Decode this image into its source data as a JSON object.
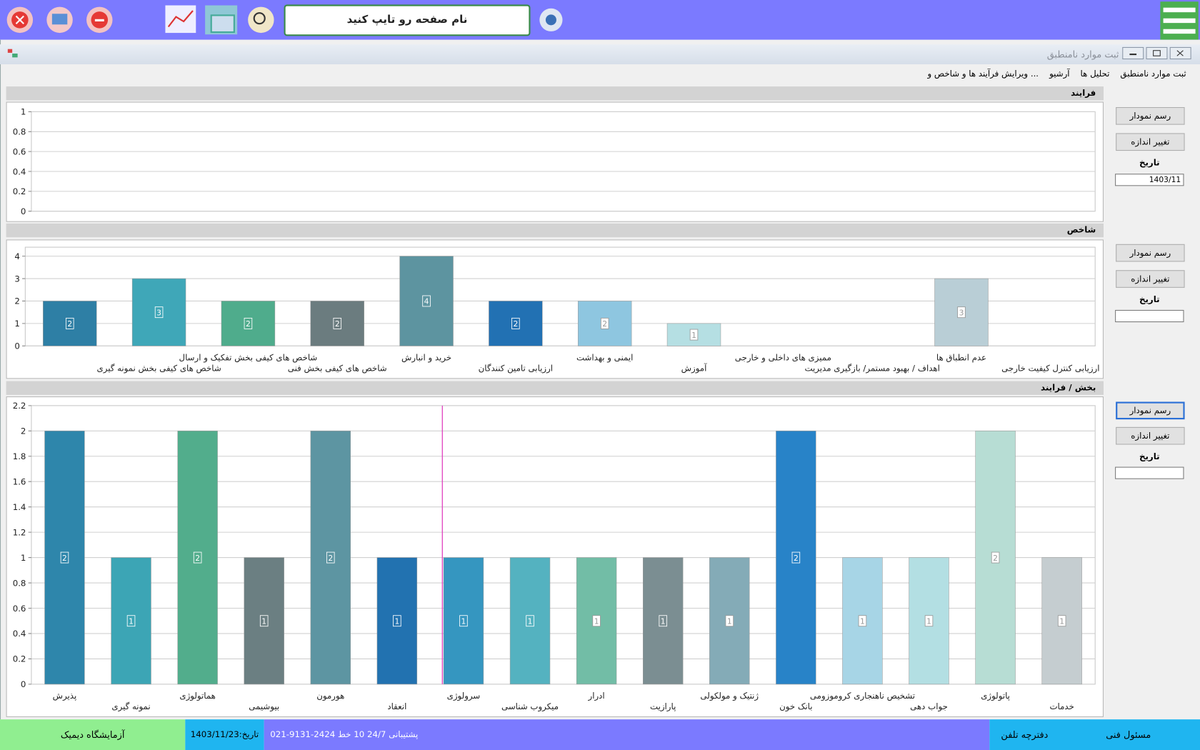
{
  "toolbar": {
    "search_placeholder": "نام صفحه رو تایپ کنید"
  },
  "window": {
    "title": "ثبت موارد نامنطبق"
  },
  "menu": [
    "ثبت موارد نامنطبق",
    "تحلیل ها",
    "آرشیو",
    "... ویرایش فرآیند ها و شاخص و"
  ],
  "side_panels": [
    {
      "draw": "رسم نمودار",
      "resize": "تغییر اندازه",
      "date": "تاریخ",
      "date_value": "1403/11"
    },
    {
      "draw": "رسم نمودار",
      "resize": "تغییر اندازه",
      "date": "تاریخ"
    },
    {
      "draw": "رسم نمودار",
      "resize": "تغییر اندازه",
      "date": "تاریخ"
    }
  ],
  "status_bar": {
    "lab": "آزمایشگاه دیمیک",
    "date": "تاریخ:1403/11/23",
    "support": "پشتیبانی 24/7    10 خط    2424-9131-021",
    "phonebook": "دفترچه تلفن",
    "technical": "مسئول فنی"
  },
  "chart_data": [
    {
      "type": "bar",
      "title": "فرایند",
      "categories": [],
      "values": [],
      "colors": [],
      "ylim": [
        0,
        1
      ],
      "yticks": [
        0,
        0.2,
        0.4,
        0.6,
        0.8,
        1
      ],
      "grid": true
    },
    {
      "type": "bar",
      "title": "شاخص",
      "categories": [
        null,
        "شاخص های کیفی بخش نمونه گیری",
        "شاخص های کیفی بخش تفکیک و ارسال",
        "شاخص های کیفی بخش فنی",
        "خرید و انبارش",
        "ارزیابی تامین کنندگان",
        "ایمنی و بهداشت",
        "آموزش",
        "ممیزی های داخلی و خارجی",
        "اهداف / بهبود مستمر/ بازگیری مدیریت",
        "عدم انطباق ها",
        "ارزیابی کنترل کیفیت خارجی"
      ],
      "values": [
        2,
        3,
        2,
        2,
        4,
        2,
        2,
        1,
        null,
        null,
        3,
        null
      ],
      "colors": [
        "#2e7fa5",
        "#3fa7b8",
        "#4fac8c",
        "#6b7c7f",
        "#5d94a0",
        "#2271b3",
        "#8ec6e0",
        "#b5dfe3",
        null,
        null,
        "#b9ced6",
        null
      ],
      "ylim": [
        0,
        4.4
      ],
      "yticks": [
        0,
        1,
        2,
        3,
        4
      ],
      "grid": true
    },
    {
      "type": "bar",
      "title": "بخش / فرایند",
      "categories": [
        "پذیرش",
        "نمونه گیری",
        "هماتولوژی",
        "بیوشیمی",
        "هورمون",
        "انعقاد",
        "سرولوژی",
        "میکروب شناسی",
        "ادرار",
        "پارازیت",
        "ژنتیک و مولکولی",
        "بانک خون",
        "تشخیص ناهنجاری کروموزومی",
        "جواب دهی",
        "پاتولوژی",
        "خدمات"
      ],
      "values": [
        2,
        1,
        2,
        1,
        2,
        1,
        1,
        1,
        1,
        1,
        1,
        2,
        1,
        1,
        2,
        1
      ],
      "colors": [
        "#2e86ab",
        "#3ca5b5",
        "#52ad8c",
        "#6b7f82",
        "#5d95a2",
        "#2272b0",
        "#3596c0",
        "#54b2c0",
        "#72bda6",
        "#7b8e92",
        "#84abb7",
        "#2883c8",
        "#a7d5e6",
        "#b3dfe3",
        "#b7ddd4",
        "#c5cdd0"
      ],
      "ylim": [
        0,
        2.2
      ],
      "yticks": [
        0,
        0.2,
        0.4,
        0.6,
        0.8,
        1,
        1.2,
        1.4,
        1.6,
        1.8,
        2,
        2.2
      ],
      "grid": true
    }
  ]
}
